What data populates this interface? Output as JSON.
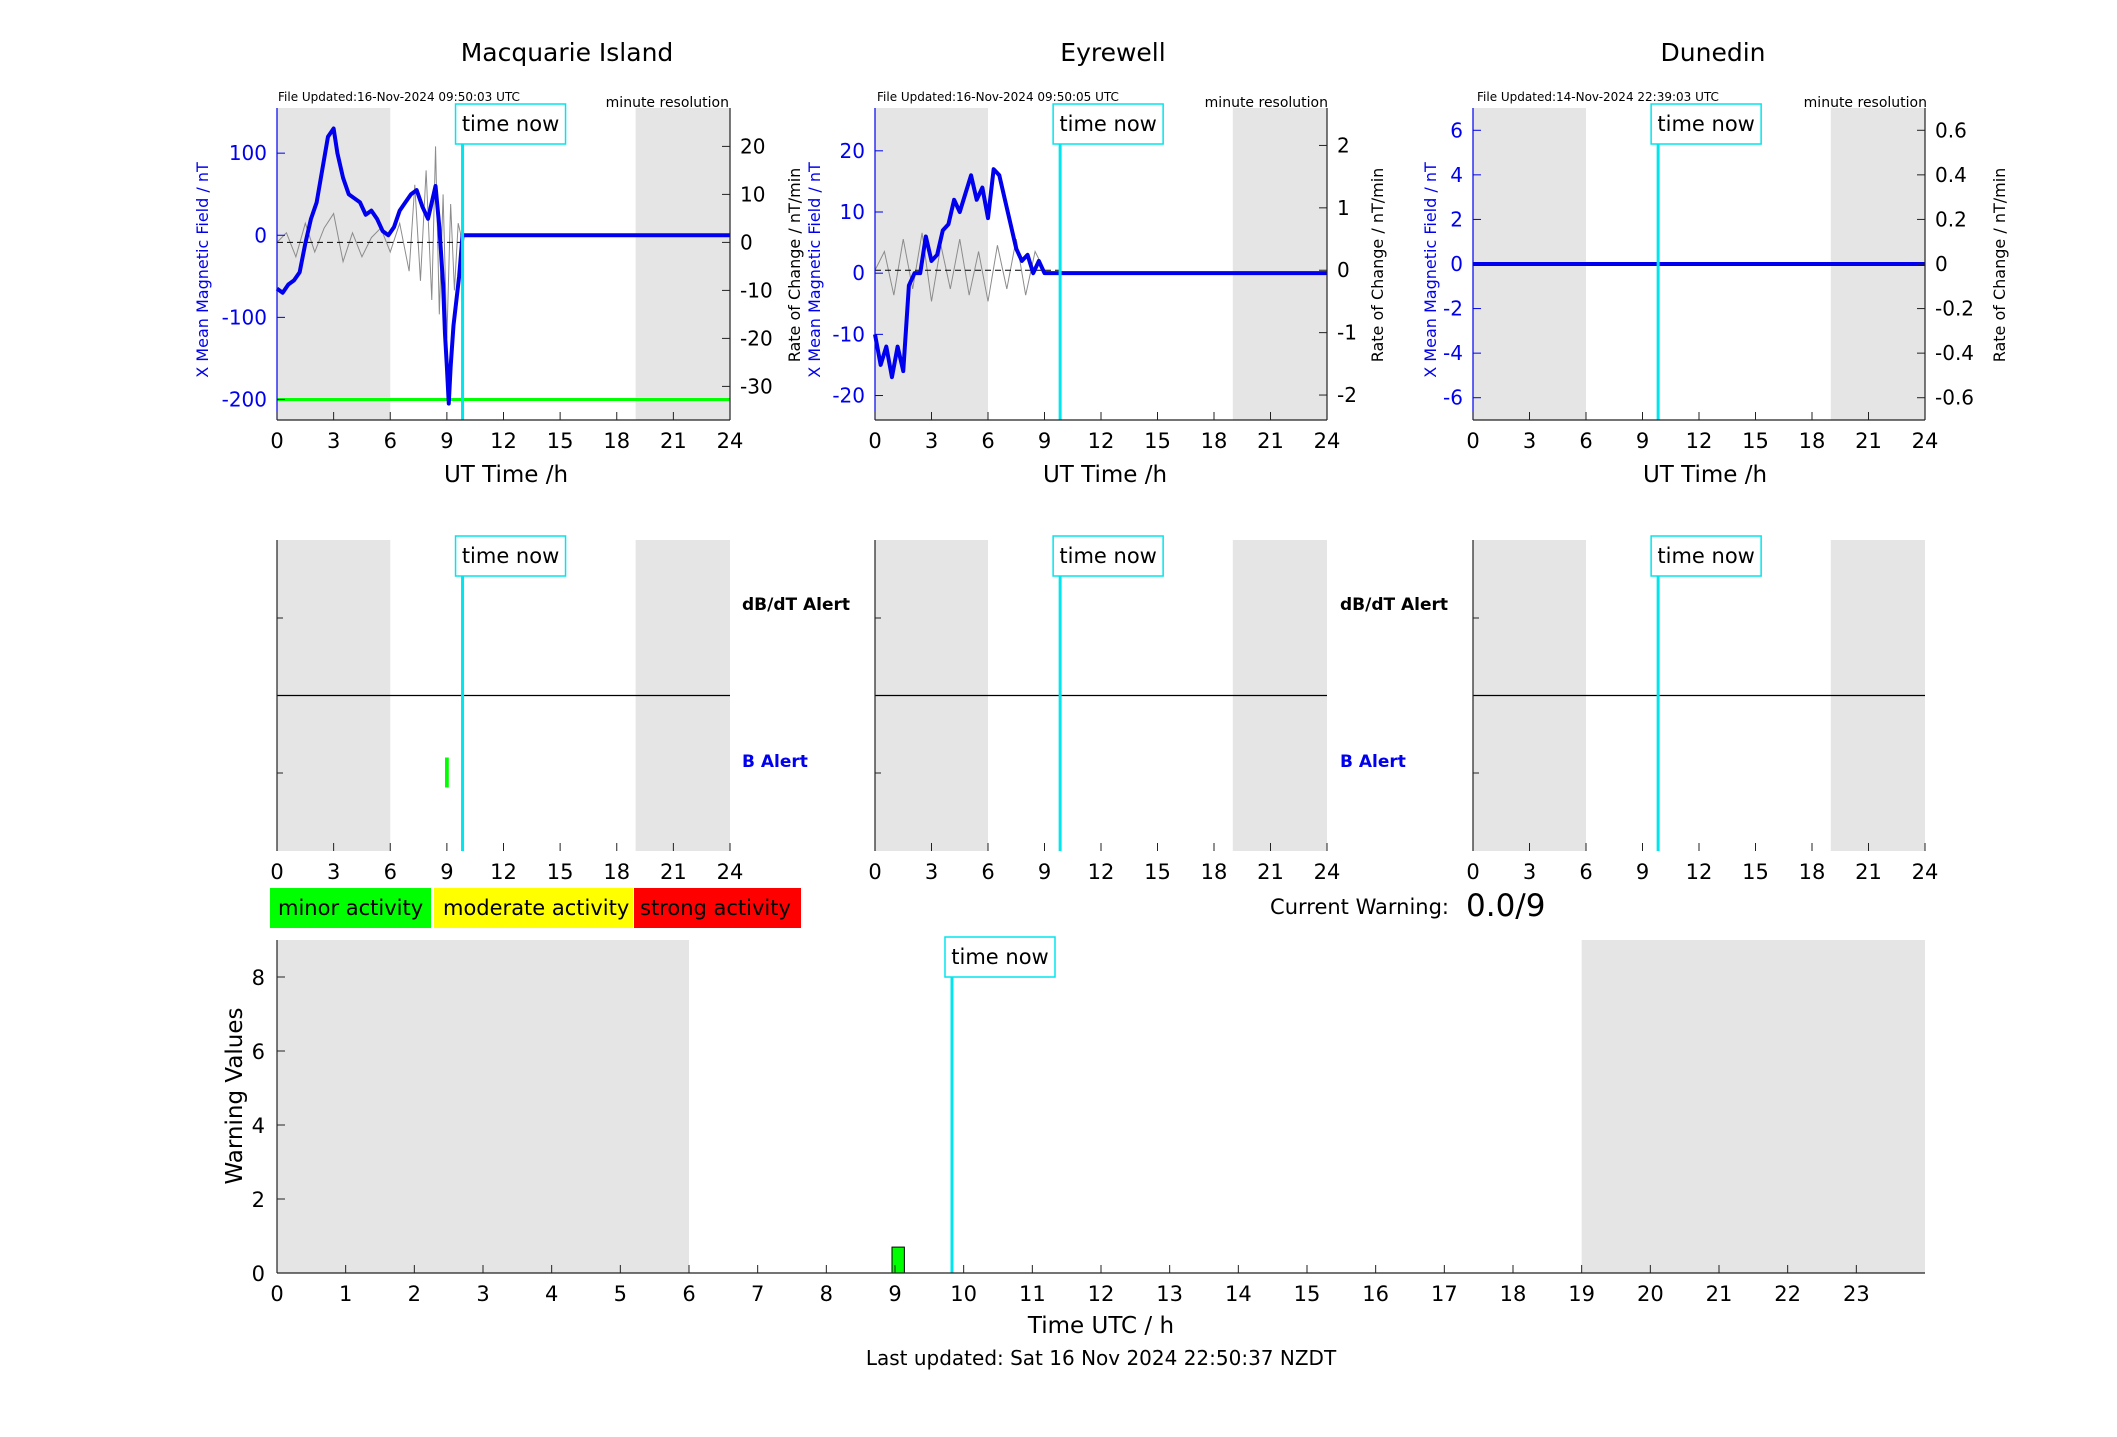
{
  "colors": {
    "night_shade": "#e5e5e5",
    "field_line": "#0000ee",
    "rate_line": "#8c8c8c",
    "time_now": "#00e5ee",
    "minor": "#00ff00",
    "moderate": "#ffff00",
    "strong": "#ff0000"
  },
  "chart_data": [
    {
      "type": "line",
      "station": "Macquarie Island",
      "file_updated": "File Updated:16-Nov-2024 09:50:03 UTC",
      "resolution": "minute resolution",
      "ylabel": "X Mean Magnetic Field / nT",
      "y2label": "Rate of Change / nT/min",
      "xlabel": "UT Time /h",
      "xlim": [
        0,
        24
      ],
      "ylim": [
        -225,
        155
      ],
      "y2lim": [
        -37,
        28
      ],
      "xticks": [
        0,
        3,
        6,
        9,
        12,
        15,
        18,
        21,
        24
      ],
      "yticks": [
        -200,
        -100,
        0,
        100
      ],
      "y2ticks": [
        -30,
        -20,
        -10,
        0,
        10,
        20
      ],
      "night_bands": [
        [
          0,
          6
        ],
        [
          19,
          24
        ]
      ],
      "time_now": 9.83,
      "time_now_label": "time now",
      "threshold": -200,
      "series": [
        {
          "x": [
            0,
            0.3,
            0.6,
            0.9,
            1.2,
            1.5,
            1.8,
            2.1,
            2.4,
            2.7,
            3.0,
            3.2,
            3.5,
            3.8,
            4.1,
            4.4,
            4.7,
            5.0,
            5.3,
            5.6,
            5.9,
            6.2,
            6.5,
            6.8,
            7.1,
            7.4,
            7.7,
            8.0,
            8.2,
            8.4,
            8.6,
            8.8,
            8.9,
            9.0,
            9.1,
            9.2,
            9.35,
            9.5,
            9.65,
            9.83,
            24
          ],
          "y": [
            -65,
            -70,
            -60,
            -55,
            -45,
            -10,
            20,
            40,
            80,
            120,
            130,
            100,
            70,
            50,
            45,
            40,
            25,
            30,
            20,
            5,
            0,
            10,
            30,
            40,
            50,
            55,
            35,
            20,
            40,
            60,
            10,
            -60,
            -120,
            -160,
            -205,
            -160,
            -110,
            -80,
            -50,
            0,
            0
          ]
        },
        {
          "x": [
            0,
            0.5,
            1.0,
            1.5,
            2.0,
            2.5,
            3.0,
            3.5,
            4.0,
            4.5,
            5.0,
            5.5,
            6.0,
            6.5,
            7.0,
            7.3,
            7.6,
            7.9,
            8.2,
            8.4,
            8.6,
            8.8,
            9.0,
            9.2,
            9.4,
            9.6,
            9.83
          ],
          "y": [
            0,
            2,
            -3,
            4,
            -2,
            3,
            6,
            -4,
            2,
            -3,
            1,
            3,
            -2,
            4,
            -6,
            12,
            -8,
            15,
            -12,
            20,
            -15,
            10,
            -20,
            8,
            -10,
            4,
            0
          ]
        }
      ]
    },
    {
      "type": "line",
      "station": "Eyrewell",
      "file_updated": "File Updated:16-Nov-2024 09:50:05 UTC",
      "resolution": "minute resolution",
      "ylabel": "X Mean Magnetic Field / nT",
      "y2label": "Rate of Change / nT/min",
      "xlabel": "UT Time /h",
      "xlim": [
        0,
        24
      ],
      "ylim": [
        -24,
        27
      ],
      "y2lim": [
        -2.4,
        2.6
      ],
      "xticks": [
        0,
        3,
        6,
        9,
        12,
        15,
        18,
        21,
        24
      ],
      "yticks": [
        -20,
        -10,
        0,
        10,
        20
      ],
      "y2ticks": [
        -2,
        -1,
        0,
        1,
        2
      ],
      "night_bands": [
        [
          0,
          6
        ],
        [
          19,
          24
        ]
      ],
      "time_now": 9.83,
      "time_now_label": "time now",
      "series": [
        {
          "x": [
            0,
            0.3,
            0.6,
            0.9,
            1.2,
            1.5,
            1.8,
            2.1,
            2.4,
            2.7,
            3.0,
            3.3,
            3.6,
            3.9,
            4.2,
            4.5,
            4.8,
            5.1,
            5.4,
            5.7,
            6.0,
            6.3,
            6.6,
            6.9,
            7.2,
            7.5,
            7.8,
            8.1,
            8.4,
            8.7,
            9.0,
            9.83,
            24
          ],
          "y": [
            -10,
            -15,
            -12,
            -17,
            -12,
            -16,
            -2,
            0,
            0,
            6,
            2,
            3,
            7,
            8,
            12,
            10,
            13,
            16,
            12,
            14,
            9,
            17,
            16,
            12,
            8,
            4,
            2,
            3,
            0,
            2,
            0,
            0,
            0
          ]
        },
        {
          "x": [
            0,
            0.5,
            1.0,
            1.5,
            2.0,
            2.5,
            3.0,
            3.5,
            4.0,
            4.5,
            5.0,
            5.5,
            6.0,
            6.5,
            7.0,
            7.5,
            8.0,
            8.5,
            9.0
          ],
          "y": [
            0,
            0.3,
            -0.4,
            0.5,
            -0.3,
            0.6,
            -0.5,
            0.4,
            -0.3,
            0.5,
            -0.4,
            0.3,
            -0.5,
            0.4,
            -0.3,
            0.5,
            -0.4,
            0.3,
            0
          ]
        }
      ]
    },
    {
      "type": "line",
      "station": "Dunedin",
      "file_updated": "File Updated:14-Nov-2024 22:39:03 UTC",
      "resolution": "minute resolution",
      "ylabel": "X Mean Magnetic Field / nT",
      "y2label": "Rate of Change / nT/min",
      "xlabel": "UT Time /h",
      "xlim": [
        0,
        24
      ],
      "ylim": [
        -7,
        7
      ],
      "y2lim": [
        -0.7,
        0.7
      ],
      "xticks": [
        0,
        3,
        6,
        9,
        12,
        15,
        18,
        21,
        24
      ],
      "yticks": [
        -6,
        -4,
        -2,
        0,
        2,
        4,
        6
      ],
      "y2ticks": [
        -0.6,
        -0.4,
        -0.2,
        0,
        0.2,
        0.4,
        0.6
      ],
      "night_bands": [
        [
          0,
          6
        ],
        [
          19,
          24
        ]
      ],
      "time_now": 9.83,
      "time_now_label": "time now",
      "series": [
        {
          "x": [
            0,
            24
          ],
          "y": [
            0,
            0
          ]
        }
      ]
    },
    {
      "type": "bar",
      "station": "Macquarie Island",
      "upper_label": "dB/dT Alert",
      "lower_label": "B Alert",
      "xlim": [
        0,
        24
      ],
      "xticks": [
        0,
        3,
        6,
        9,
        12,
        15,
        18,
        21,
        24
      ],
      "night_bands": [
        [
          0,
          6
        ],
        [
          19,
          24
        ]
      ],
      "time_now": 9.83,
      "time_now_label": "time now",
      "b_alert_bars": [
        {
          "start": 8.9,
          "end": 9.1,
          "level": "minor"
        }
      ]
    },
    {
      "type": "bar",
      "station": "Eyrewell",
      "upper_label": "dB/dT Alert",
      "lower_label": "B Alert",
      "xlim": [
        0,
        24
      ],
      "xticks": [
        0,
        3,
        6,
        9,
        12,
        15,
        18,
        21,
        24
      ],
      "night_bands": [
        [
          0,
          6
        ],
        [
          19,
          24
        ]
      ],
      "time_now": 9.83,
      "time_now_label": "time now",
      "b_alert_bars": []
    },
    {
      "type": "bar",
      "station": "Dunedin",
      "xlim": [
        0,
        24
      ],
      "xticks": [
        0,
        3,
        6,
        9,
        12,
        15,
        18,
        21,
        24
      ],
      "night_bands": [
        [
          0,
          6
        ],
        [
          19,
          24
        ]
      ],
      "time_now": 9.83,
      "time_now_label": "time now",
      "b_alert_bars": []
    },
    {
      "type": "bar",
      "title": "",
      "xlabel": "Time UTC / h",
      "ylabel": "Warning Values",
      "xlim": [
        0,
        24
      ],
      "ylim": [
        0,
        9
      ],
      "xticks": [
        0,
        1,
        2,
        3,
        4,
        5,
        6,
        7,
        8,
        9,
        10,
        11,
        12,
        13,
        14,
        15,
        16,
        17,
        18,
        19,
        20,
        21,
        22,
        23
      ],
      "yticks": [
        0,
        2,
        4,
        6,
        8
      ],
      "night_bands": [
        [
          0,
          6
        ],
        [
          19,
          24
        ]
      ],
      "time_now": 9.83,
      "time_now_label": "time now",
      "bars": [
        {
          "x": 9.0,
          "width": 0.18,
          "value": 0.7,
          "level": "minor"
        }
      ]
    }
  ],
  "legend": {
    "minor": "minor activity",
    "moderate": "moderate activity",
    "strong": "strong activity"
  },
  "current_warning": {
    "label": "Current Warning:",
    "value": "0.0/9"
  },
  "footer": {
    "last_updated": "Last updated: Sat 16 Nov 2024 22:50:37 NZDT"
  }
}
